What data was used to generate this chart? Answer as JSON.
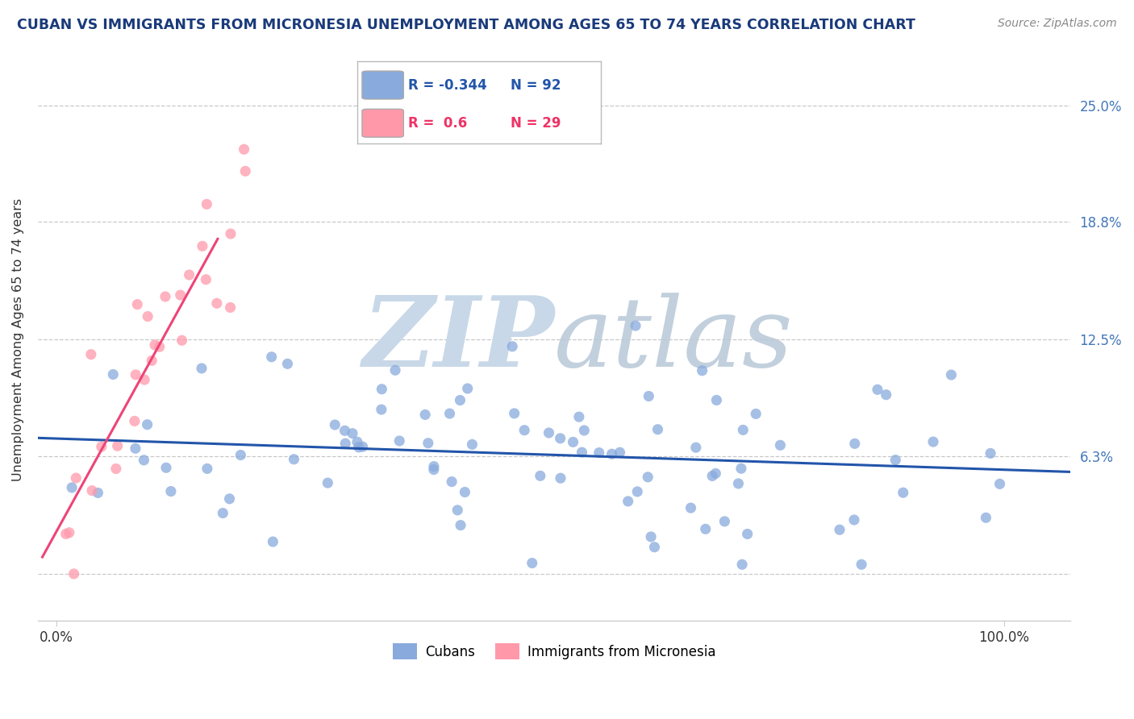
{
  "title": "CUBAN VS IMMIGRANTS FROM MICRONESIA UNEMPLOYMENT AMONG AGES 65 TO 74 YEARS CORRELATION CHART",
  "source": "Source: ZipAtlas.com",
  "ylabel": "Unemployment Among Ages 65 to 74 years",
  "cubans_R": -0.344,
  "cubans_N": 92,
  "micronesia_R": 0.6,
  "micronesia_N": 29,
  "blue_color": "#88AADD",
  "pink_color": "#FF99AA",
  "trend_blue": "#2255AA",
  "trend_pink": "#EE4477",
  "legend_label_blue": "Cubans",
  "legend_label_pink": "Immigrants from Micronesia",
  "ytick_vals": [
    0.0,
    6.3,
    12.5,
    18.8,
    25.0
  ],
  "ytick_labels": [
    "",
    "6.3%",
    "12.5%",
    "18.8%",
    "25.0%"
  ],
  "xtick_vals": [
    0,
    100
  ],
  "xtick_labels": [
    "0.0%",
    "100.0%"
  ],
  "xlim": [
    -2,
    107
  ],
  "ylim": [
    -2.5,
    27.5
  ],
  "watermark_zip_color": "#C8D8E8",
  "watermark_atlas_color": "#B8C8D8",
  "title_color": "#1A3A7A",
  "source_color": "#888888",
  "tick_color_right": "#4477BB",
  "tick_color_bottom": "#333333",
  "grid_color": "#BBBBBB",
  "legend_R_blue_color": "#2255AA",
  "legend_R_pink_color": "#EE3366",
  "legend_N_blue_color": "#2255AA",
  "legend_N_pink_color": "#EE3366"
}
